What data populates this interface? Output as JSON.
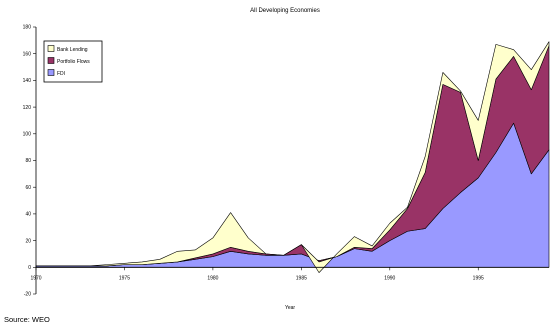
{
  "chart_data": {
    "type": "area",
    "stacked": true,
    "title": "All Developing Economies",
    "xlabel": "Year",
    "ylabel": "",
    "ylim": [
      -20,
      180
    ],
    "yticks": [
      -20,
      0,
      20,
      40,
      60,
      80,
      100,
      120,
      140,
      160,
      180
    ],
    "xlim": [
      1970,
      1999
    ],
    "xticks": [
      1970,
      1975,
      1980,
      1985,
      1990,
      1995
    ],
    "legend_position": "top-left",
    "grid": false,
    "x": [
      1970,
      1971,
      1972,
      1973,
      1974,
      1975,
      1976,
      1977,
      1978,
      1979,
      1980,
      1981,
      1982,
      1983,
      1984,
      1985,
      1986,
      1987,
      1988,
      1989,
      1990,
      1991,
      1992,
      1993,
      1994,
      1995,
      1996,
      1997,
      1998,
      1999
    ],
    "series": [
      {
        "name": "FDI",
        "color": "#9999ff",
        "values": [
          1,
          1,
          1,
          1,
          1,
          2,
          2,
          3,
          4,
          6,
          8,
          12,
          10,
          9,
          9,
          10,
          5,
          8,
          14,
          12,
          20,
          27,
          29,
          44,
          56,
          67,
          86,
          108,
          70,
          88
        ]
      },
      {
        "name": "Portfolio Flows",
        "color": "#993366",
        "values": [
          0,
          0,
          0,
          0,
          0,
          0,
          0,
          0,
          0,
          1,
          2,
          3,
          2,
          1,
          0,
          7,
          -1,
          0,
          1,
          2,
          8,
          17,
          42,
          93,
          75,
          13,
          55,
          50,
          63,
          78
        ]
      },
      {
        "name": "Bank Lending",
        "color": "#ffffcc",
        "values": [
          0,
          0,
          0,
          0,
          1,
          1,
          2,
          3,
          8,
          6,
          12,
          26,
          10,
          0,
          0,
          0,
          -8,
          2,
          8,
          2,
          5,
          1,
          12,
          9,
          1,
          30,
          26,
          5,
          15,
          3
        ]
      }
    ],
    "annotation": "Source: WEO"
  }
}
